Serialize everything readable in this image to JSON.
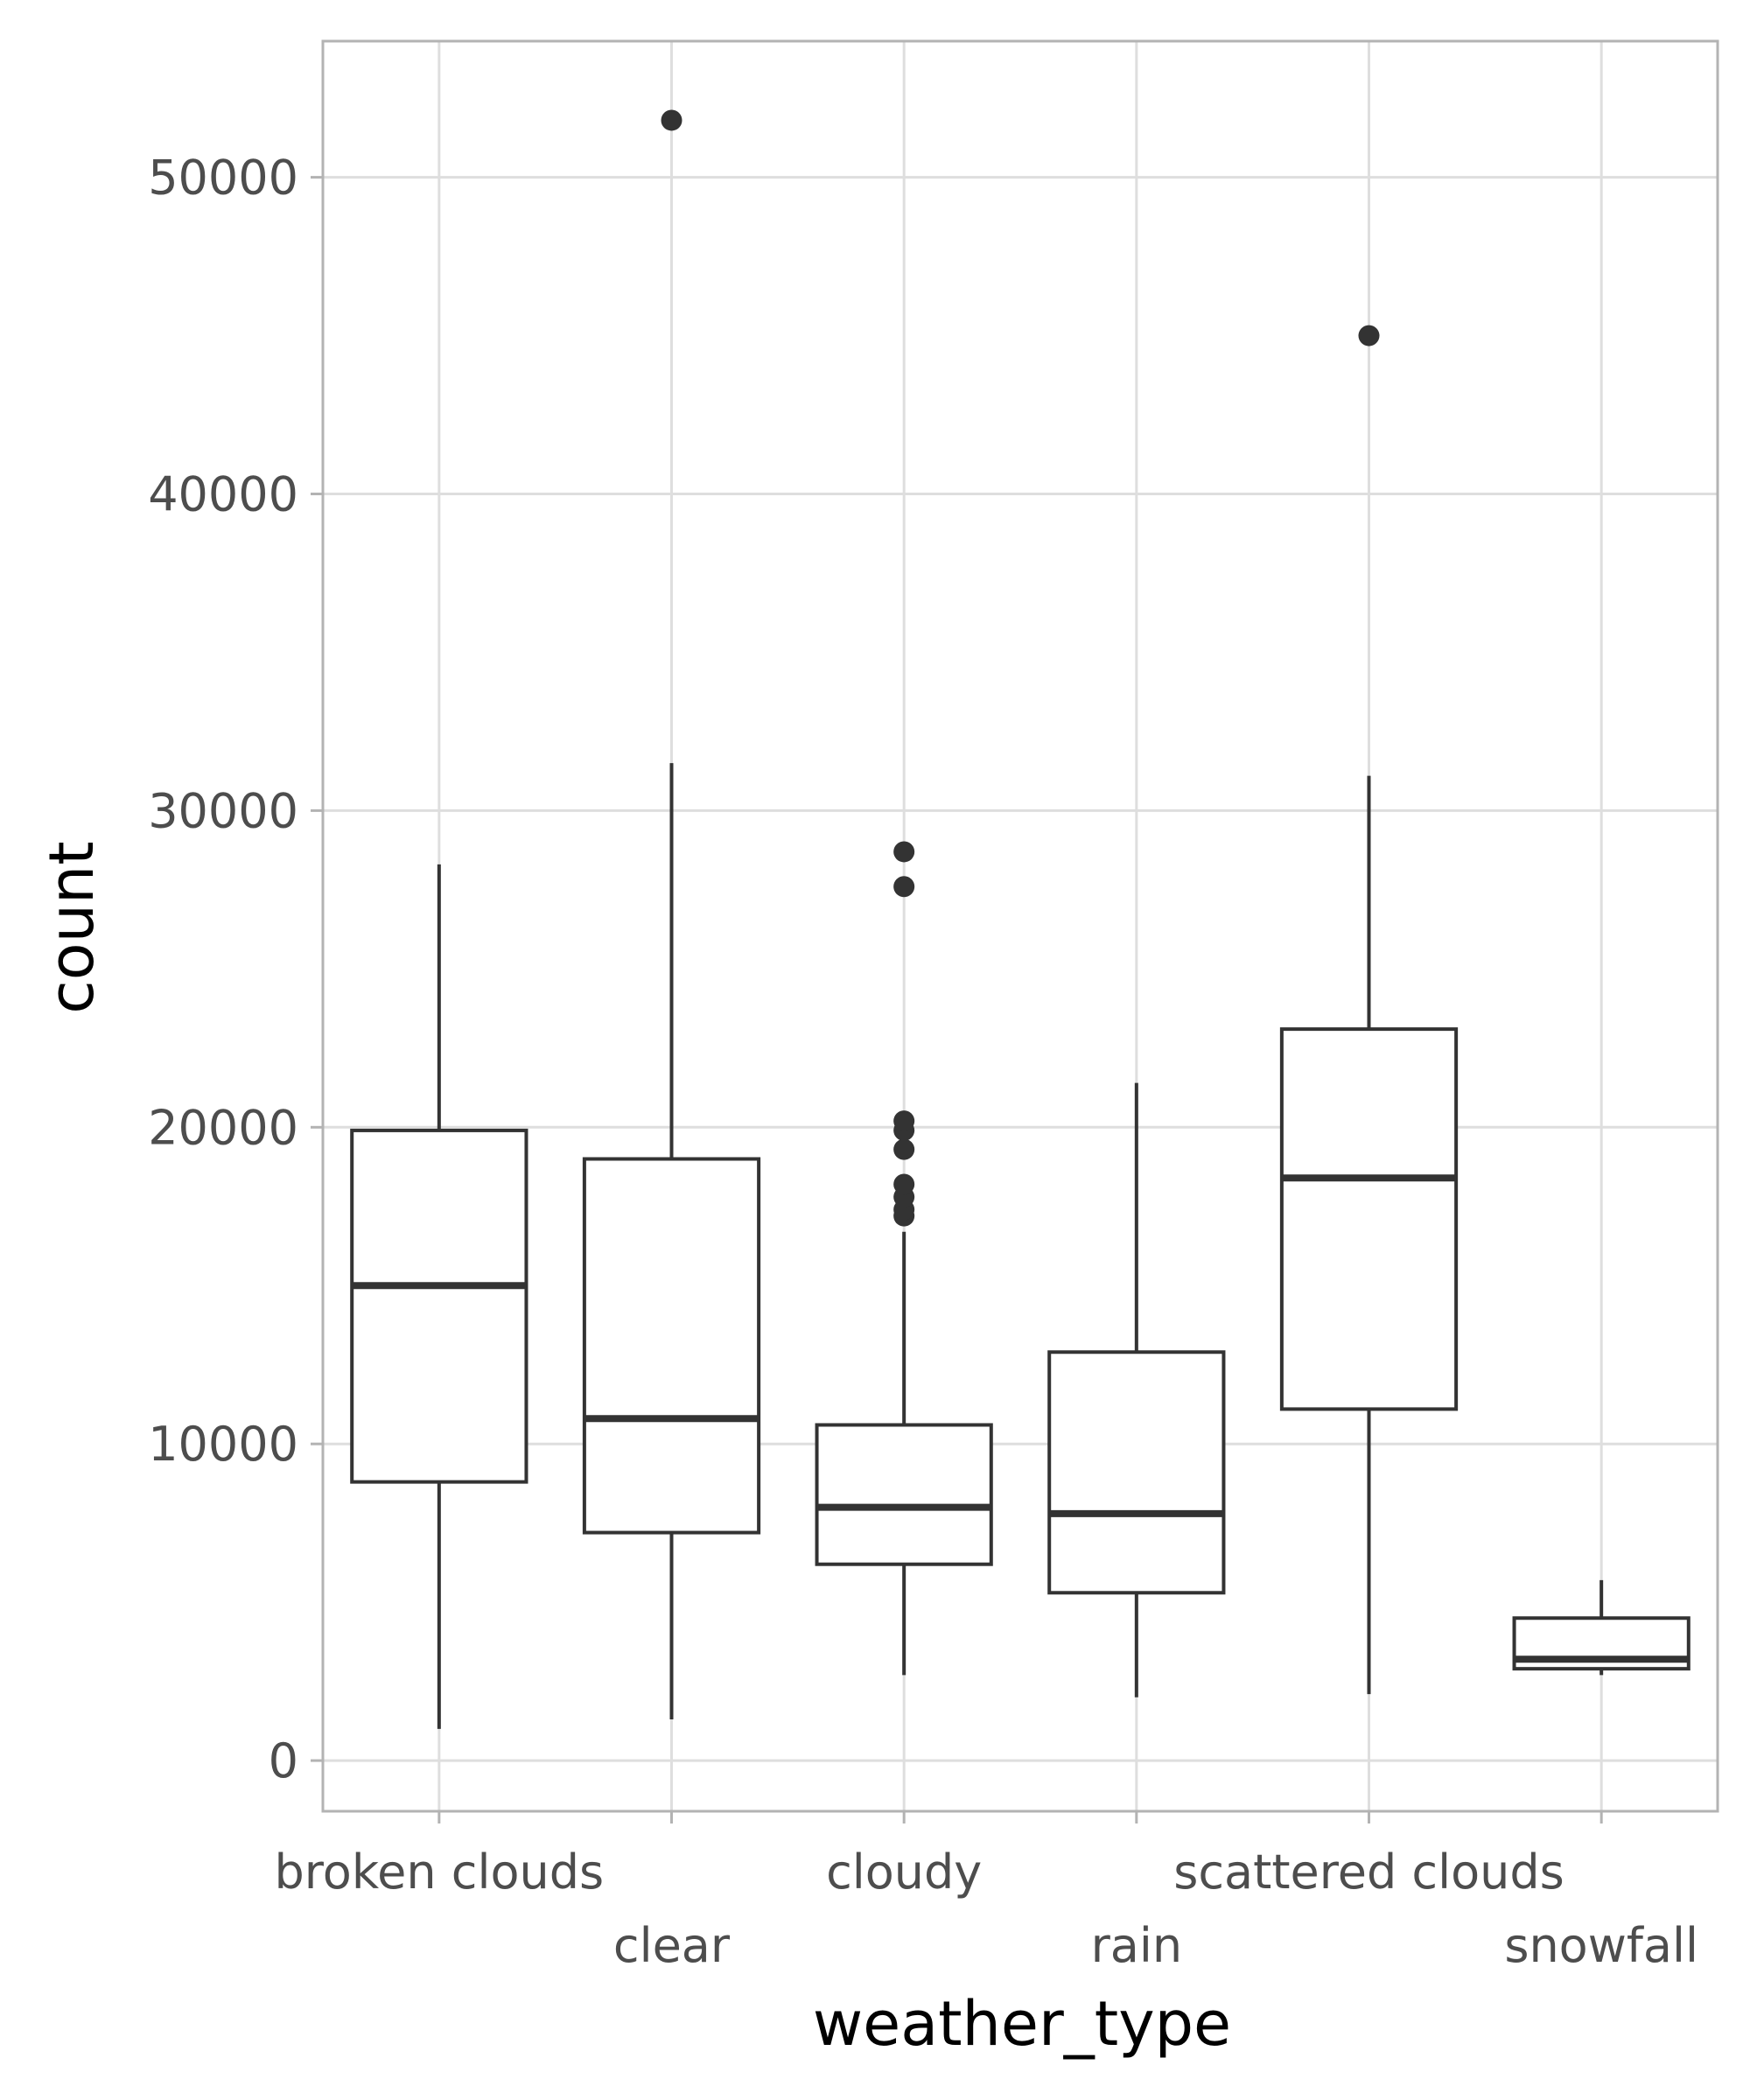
{
  "chart_data": {
    "type": "boxplot",
    "xlabel": "weather_type",
    "ylabel": "count",
    "ylim": [
      -1600,
      54300
    ],
    "yticks": [
      0,
      10000,
      20000,
      30000,
      40000,
      50000
    ],
    "grid": true,
    "categories": [
      "broken clouds",
      "clear",
      "cloudy",
      "rain",
      "scattered clouds",
      "snowfall"
    ],
    "boxes": [
      {
        "category": "broken clouds",
        "whisker_low": 1000,
        "q1": 8800,
        "median": 15000,
        "q3": 19900,
        "whisker_high": 28300,
        "outliers": []
      },
      {
        "category": "clear",
        "whisker_low": 1300,
        "q1": 7200,
        "median": 10800,
        "q3": 19000,
        "whisker_high": 31500,
        "outliers": [
          51800
        ]
      },
      {
        "category": "cloudy",
        "whisker_low": 2700,
        "q1": 6200,
        "median": 8000,
        "q3": 10600,
        "whisker_high": 16700,
        "outliers": [
          17200,
          17400,
          17800,
          18200,
          19300,
          19900,
          20200,
          27600,
          28700
        ]
      },
      {
        "category": "rain",
        "whisker_low": 2000,
        "q1": 5300,
        "median": 7800,
        "q3": 12900,
        "whisker_high": 21400,
        "outliers": []
      },
      {
        "category": "scattered clouds",
        "whisker_low": 2100,
        "q1": 11100,
        "median": 18400,
        "q3": 23100,
        "whisker_high": 31100,
        "outliers": [
          45000
        ]
      },
      {
        "category": "snowfall",
        "whisker_low": 2700,
        "q1": 2900,
        "median": 3200,
        "q3": 4500,
        "whisker_high": 5700,
        "outliers": []
      }
    ],
    "colors": {
      "box_line": "#333333",
      "grid": "#dedede",
      "panel_border": "#b3b3b3",
      "tick_text": "#4d4d4d",
      "title_text": "#000000"
    }
  }
}
